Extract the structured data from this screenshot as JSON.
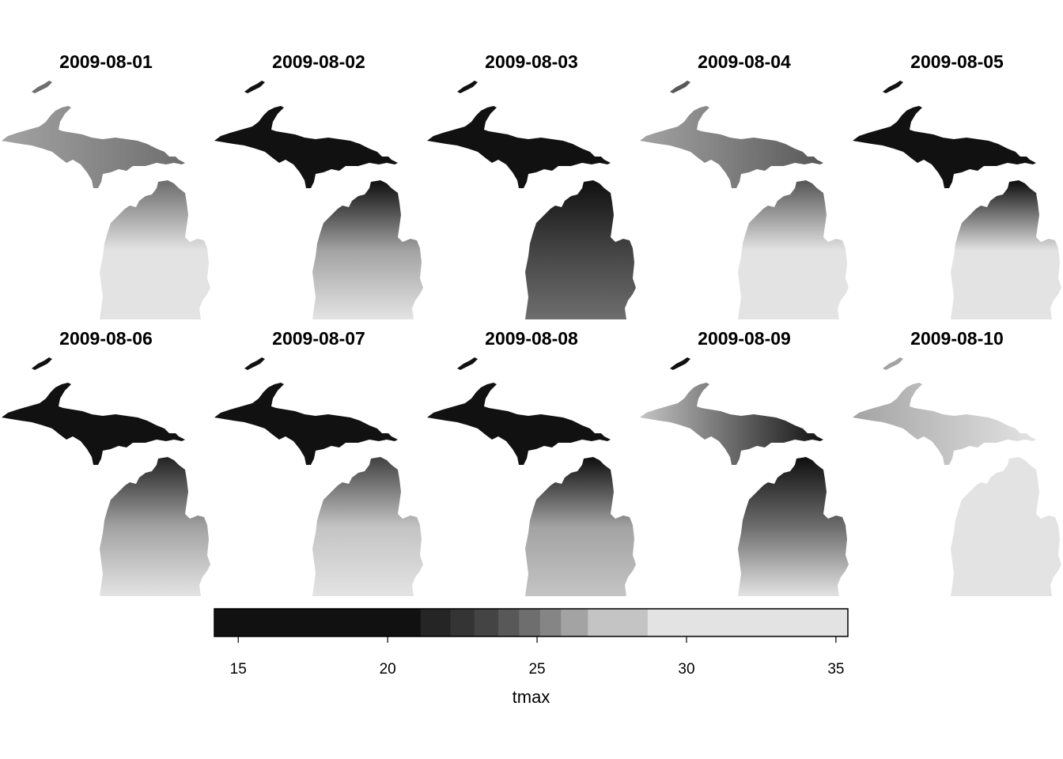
{
  "panels": [
    {
      "title": "2009-08-01",
      "tone": {
        "up_west": 0.55,
        "up_east": 0.5,
        "lp_north": 0.5,
        "lp_mid": 0.75,
        "lp_south": 0.78
      }
    },
    {
      "title": "2009-08-02",
      "tone": {
        "up_west": 0.05,
        "up_east": 0.12,
        "lp_north": 0.22,
        "lp_mid": 0.55,
        "lp_south": 0.85
      }
    },
    {
      "title": "2009-08-03",
      "tone": {
        "up_west": 0.18,
        "up_east": 0.25,
        "lp_north": 0.2,
        "lp_mid": 0.42,
        "lp_south": 0.5
      }
    },
    {
      "title": "2009-08-04",
      "tone": {
        "up_west": 0.55,
        "up_east": 0.45,
        "lp_north": 0.45,
        "lp_mid": 0.9,
        "lp_south": 0.92
      }
    },
    {
      "title": "2009-08-05",
      "tone": {
        "up_west": 0.05,
        "up_east": 0.08,
        "lp_north": 0.1,
        "lp_mid": 0.92,
        "lp_south": 0.95
      }
    },
    {
      "title": "2009-08-06",
      "tone": {
        "up_west": 0.1,
        "up_east": 0.12,
        "lp_north": 0.35,
        "lp_mid": 0.55,
        "lp_south": 0.78
      }
    },
    {
      "title": "2009-08-07",
      "tone": {
        "up_west": 0.25,
        "up_east": 0.18,
        "lp_north": 0.42,
        "lp_mid": 0.6,
        "lp_south": 0.75
      }
    },
    {
      "title": "2009-08-08",
      "tone": {
        "up_west": 0.1,
        "up_east": 0.28,
        "lp_north": 0.25,
        "lp_mid": 0.55,
        "lp_south": 0.6
      }
    },
    {
      "title": "2009-08-09",
      "tone": {
        "up_west": 0.6,
        "up_east": 0.1,
        "lp_north": 0.15,
        "lp_mid": 0.5,
        "lp_south": 0.9
      }
    },
    {
      "title": "2009-08-10",
      "tone": {
        "up_west": 0.55,
        "up_east": 0.95,
        "lp_north": 0.97,
        "lp_mid": 0.97,
        "lp_south": 0.98
      }
    }
  ],
  "legend": {
    "title": "tmax",
    "min": 14.2,
    "max": 35.4,
    "ticks": [
      15,
      20,
      25,
      30,
      35
    ],
    "breaks": [
      14.2,
      21.1,
      22.1,
      22.9,
      23.7,
      24.4,
      25.1,
      25.8,
      26.7,
      28.7,
      35.4
    ],
    "colors": [
      "#111111",
      "#252525",
      "#343434",
      "#444444",
      "#585858",
      "#6e6e6e",
      "#858585",
      "#a3a3a3",
      "#c4c4c4",
      "#e3e3e3"
    ]
  }
}
